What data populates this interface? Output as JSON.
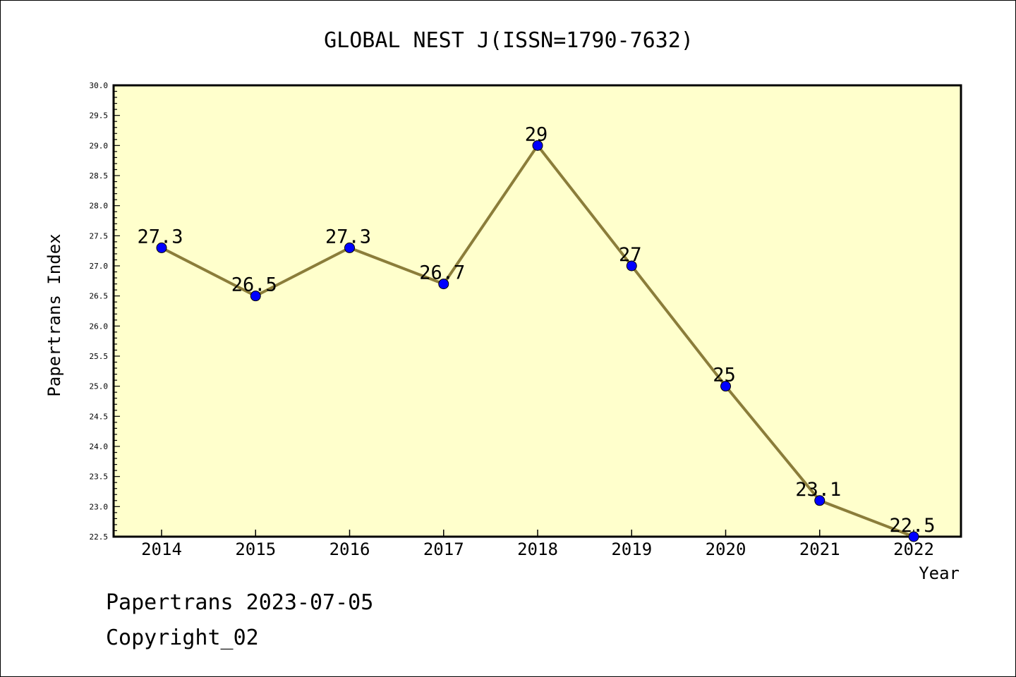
{
  "footer": {
    "line1": "Papertrans 2023-07-05",
    "line2": "Copyright_02"
  },
  "chart_data": {
    "type": "line",
    "title": "GLOBAL NEST J(ISSN=1790-7632)",
    "xlabel": "Year",
    "ylabel": "Papertrans Index",
    "categories": [
      "2014",
      "2015",
      "2016",
      "2017",
      "2018",
      "2019",
      "2020",
      "2021",
      "2022"
    ],
    "values": [
      27.3,
      26.5,
      27.3,
      26.7,
      29,
      27,
      25,
      23.1,
      22.5
    ],
    "data_labels": [
      "27.3",
      "26.5",
      "27.3",
      "26.7",
      "29",
      "27",
      "25",
      "23.1",
      "22.5"
    ],
    "ylim": [
      22.5,
      30.0
    ],
    "yticks": [
      "22.5",
      "23.0",
      "23.5",
      "24.0",
      "24.5",
      "25.0",
      "25.5",
      "26.0",
      "26.5",
      "27.0",
      "27.5",
      "28.0",
      "28.5",
      "29.0",
      "29.5",
      "30.0"
    ],
    "grid": false,
    "legend": "none",
    "colors": {
      "plot_background": "#ffffcc",
      "line": "#8b7d3a",
      "marker": "#0000ff",
      "axis": "#000000"
    }
  }
}
